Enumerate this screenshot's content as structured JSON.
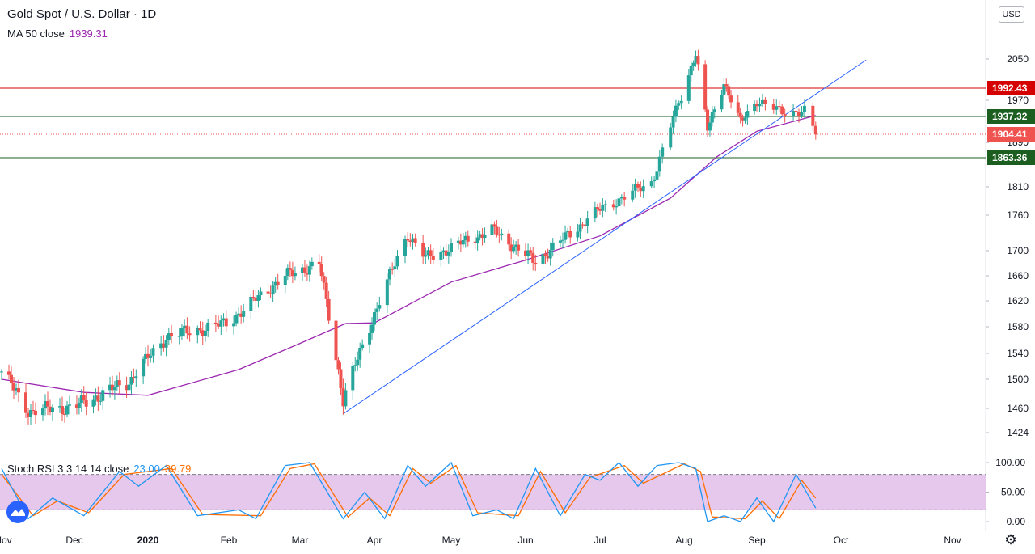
{
  "header": {
    "symbol_title": "Gold Spot / U.S. Dollar · 1D",
    "ma_label": "MA 50 close",
    "ma_value": "1939.31",
    "stoch_label": "Stoch RSI 3 3 14 14 close",
    "stoch_k_value": "23.00",
    "stoch_d_value": "39.79",
    "currency_button": "USD"
  },
  "colors": {
    "up": "#26a69a",
    "down": "#ef5350",
    "ma": "#9c27b0",
    "trendline": "#2962ff",
    "resistance": "#d50000",
    "support": "#1b5e20",
    "stoch_k": "#2196f3",
    "stoch_d": "#ff6d00",
    "stoch_band": "#e1bee7"
  },
  "chart_data": [
    {
      "type": "candlestick",
      "title": "Gold Spot / U.S. Dollar · 1D",
      "y_axis_ticks": [
        1424,
        1460,
        1500,
        1540,
        1580,
        1620,
        1660,
        1700,
        1760,
        1810,
        1890,
        1970,
        2050
      ],
      "x_axis_ticks": [
        "Nov",
        "Dec",
        "2020",
        "Feb",
        "Mar",
        "Apr",
        "May",
        "Jun",
        "Jul",
        "Aug",
        "Sep",
        "Oct",
        "Nov"
      ],
      "price_labels": [
        {
          "value": 1992.43,
          "label": "1992.43",
          "kind": "resistance"
        },
        {
          "value": 1937.32,
          "label": "1937.32",
          "kind": "support"
        },
        {
          "value": 1904.41,
          "label": "1904.41",
          "kind": "current"
        },
        {
          "value": 1863.36,
          "label": "1863.36",
          "kind": "support"
        }
      ],
      "trendline": {
        "from": {
          "date": "2020-03-19",
          "value": 1452
        },
        "to": {
          "date": "2020-10-08",
          "value": 2048
        }
      },
      "close_keypoints": [
        {
          "date": "2019-11-01",
          "value": 1512
        },
        {
          "date": "2019-11-12",
          "value": 1456
        },
        {
          "date": "2019-12-01",
          "value": 1462
        },
        {
          "date": "2019-12-24",
          "value": 1497
        },
        {
          "date": "2020-01-08",
          "value": 1565
        },
        {
          "date": "2020-01-31",
          "value": 1585
        },
        {
          "date": "2020-02-24",
          "value": 1660
        },
        {
          "date": "2020-03-09",
          "value": 1680
        },
        {
          "date": "2020-03-19",
          "value": 1472
        },
        {
          "date": "2020-04-14",
          "value": 1728
        },
        {
          "date": "2020-04-21",
          "value": 1688
        },
        {
          "date": "2020-05-18",
          "value": 1735
        },
        {
          "date": "2020-06-05",
          "value": 1682
        },
        {
          "date": "2020-07-01",
          "value": 1770
        },
        {
          "date": "2020-07-20",
          "value": 1818
        },
        {
          "date": "2020-08-06",
          "value": 2064
        },
        {
          "date": "2020-08-11",
          "value": 1912
        },
        {
          "date": "2020-08-18",
          "value": 2005
        },
        {
          "date": "2020-08-25",
          "value": 1925
        },
        {
          "date": "2020-09-01",
          "value": 1970
        },
        {
          "date": "2020-09-10",
          "value": 1945
        },
        {
          "date": "2020-09-18",
          "value": 1950
        },
        {
          "date": "2020-09-22",
          "value": 1904
        }
      ],
      "ma50_keypoints": [
        {
          "date": "2019-11-01",
          "value": 1500
        },
        {
          "date": "2019-12-05",
          "value": 1482
        },
        {
          "date": "2020-01-01",
          "value": 1478
        },
        {
          "date": "2020-02-05",
          "value": 1515
        },
        {
          "date": "2020-03-01",
          "value": 1555
        },
        {
          "date": "2020-03-20",
          "value": 1585
        },
        {
          "date": "2020-04-01",
          "value": 1586
        },
        {
          "date": "2020-05-01",
          "value": 1650
        },
        {
          "date": "2020-06-01",
          "value": 1685
        },
        {
          "date": "2020-07-01",
          "value": 1725
        },
        {
          "date": "2020-07-27",
          "value": 1790
        },
        {
          "date": "2020-08-15",
          "value": 1865
        },
        {
          "date": "2020-09-01",
          "value": 1910
        },
        {
          "date": "2020-09-22",
          "value": 1939.31
        }
      ]
    },
    {
      "type": "line",
      "title": "Stoch RSI 3 3 14 14 close",
      "y_axis_ticks": [
        0,
        50,
        100
      ],
      "y_labels": [
        "0.00",
        "50.00",
        "100.00"
      ],
      "band": [
        20,
        80
      ],
      "k_keypoints": [
        {
          "date": "2019-11-01",
          "value": 90
        },
        {
          "date": "2019-11-12",
          "value": 5
        },
        {
          "date": "2019-11-22",
          "value": 40
        },
        {
          "date": "2019-12-05",
          "value": 10
        },
        {
          "date": "2019-12-20",
          "value": 85
        },
        {
          "date": "2019-12-28",
          "value": 60
        },
        {
          "date": "2020-01-08",
          "value": 95
        },
        {
          "date": "2020-01-20",
          "value": 10
        },
        {
          "date": "2020-02-05",
          "value": 20
        },
        {
          "date": "2020-02-12",
          "value": 5
        },
        {
          "date": "2020-02-24",
          "value": 95
        },
        {
          "date": "2020-03-05",
          "value": 100
        },
        {
          "date": "2020-03-19",
          "value": 5
        },
        {
          "date": "2020-03-28",
          "value": 50
        },
        {
          "date": "2020-04-05",
          "value": 5
        },
        {
          "date": "2020-04-14",
          "value": 95
        },
        {
          "date": "2020-04-21",
          "value": 60
        },
        {
          "date": "2020-05-01",
          "value": 100
        },
        {
          "date": "2020-05-10",
          "value": 10
        },
        {
          "date": "2020-05-20",
          "value": 20
        },
        {
          "date": "2020-05-27",
          "value": 5
        },
        {
          "date": "2020-06-05",
          "value": 90
        },
        {
          "date": "2020-06-15",
          "value": 10
        },
        {
          "date": "2020-06-25",
          "value": 80
        },
        {
          "date": "2020-07-01",
          "value": 70
        },
        {
          "date": "2020-07-08",
          "value": 100
        },
        {
          "date": "2020-07-15",
          "value": 60
        },
        {
          "date": "2020-07-22",
          "value": 95
        },
        {
          "date": "2020-07-30",
          "value": 100
        },
        {
          "date": "2020-08-06",
          "value": 90
        },
        {
          "date": "2020-08-11",
          "value": 0
        },
        {
          "date": "2020-08-18",
          "value": 10
        },
        {
          "date": "2020-08-25",
          "value": 0
        },
        {
          "date": "2020-09-01",
          "value": 40
        },
        {
          "date": "2020-09-07",
          "value": 0
        },
        {
          "date": "2020-09-15",
          "value": 80
        },
        {
          "date": "2020-09-22",
          "value": 23
        }
      ],
      "d_keypoints": [
        {
          "date": "2019-11-01",
          "value": 80
        },
        {
          "date": "2019-11-14",
          "value": 10
        },
        {
          "date": "2019-11-24",
          "value": 35
        },
        {
          "date": "2019-12-07",
          "value": 15
        },
        {
          "date": "2019-12-22",
          "value": 80
        },
        {
          "date": "2020-01-10",
          "value": 90
        },
        {
          "date": "2020-01-22",
          "value": 12
        },
        {
          "date": "2020-02-14",
          "value": 10
        },
        {
          "date": "2020-02-26",
          "value": 90
        },
        {
          "date": "2020-03-07",
          "value": 98
        },
        {
          "date": "2020-03-21",
          "value": 8
        },
        {
          "date": "2020-03-30",
          "value": 40
        },
        {
          "date": "2020-04-07",
          "value": 10
        },
        {
          "date": "2020-04-16",
          "value": 90
        },
        {
          "date": "2020-04-23",
          "value": 65
        },
        {
          "date": "2020-05-03",
          "value": 95
        },
        {
          "date": "2020-05-12",
          "value": 15
        },
        {
          "date": "2020-05-29",
          "value": 10
        },
        {
          "date": "2020-06-07",
          "value": 85
        },
        {
          "date": "2020-06-17",
          "value": 15
        },
        {
          "date": "2020-06-27",
          "value": 75
        },
        {
          "date": "2020-07-10",
          "value": 95
        },
        {
          "date": "2020-07-17",
          "value": 65
        },
        {
          "date": "2020-08-01",
          "value": 98
        },
        {
          "date": "2020-08-08",
          "value": 85
        },
        {
          "date": "2020-08-13",
          "value": 8
        },
        {
          "date": "2020-08-27",
          "value": 5
        },
        {
          "date": "2020-09-03",
          "value": 35
        },
        {
          "date": "2020-09-09",
          "value": 5
        },
        {
          "date": "2020-09-17",
          "value": 70
        },
        {
          "date": "2020-09-22",
          "value": 39.79
        }
      ]
    }
  ]
}
